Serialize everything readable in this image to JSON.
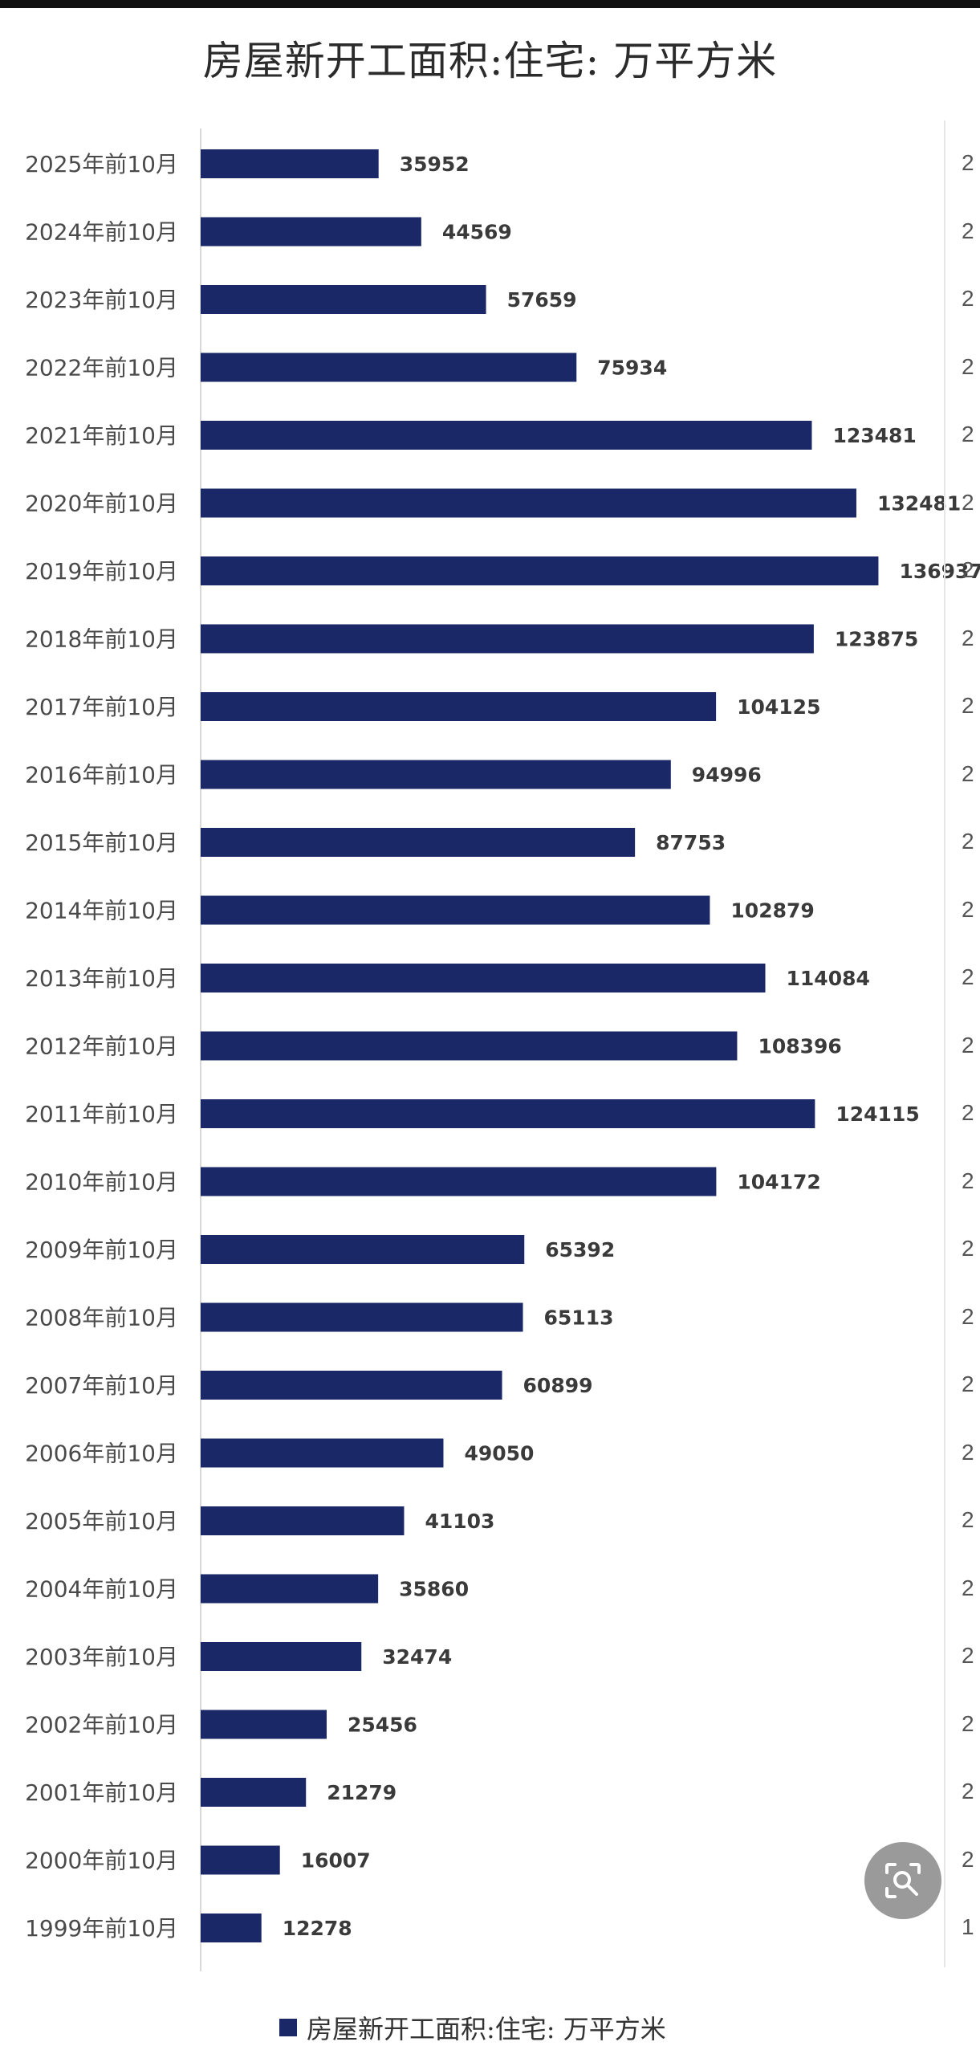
{
  "chart_data": {
    "type": "bar",
    "orientation": "horizontal",
    "title": "房屋新开工面积:住宅: 万平方米",
    "categories": [
      "2025年前10月",
      "2024年前10月",
      "2023年前10月",
      "2022年前10月",
      "2021年前10月",
      "2020年前10月",
      "2019年前10月",
      "2018年前10月",
      "2017年前10月",
      "2016年前10月",
      "2015年前10月",
      "2014年前10月",
      "2013年前10月",
      "2012年前10月",
      "2011年前10月",
      "2010年前10月",
      "2009年前10月",
      "2008年前10月",
      "2007年前10月",
      "2006年前10月",
      "2005年前10月",
      "2004年前10月",
      "2003年前10月",
      "2002年前10月",
      "2001年前10月",
      "2000年前10月",
      "1999年前10月"
    ],
    "series": [
      {
        "name": "房屋新开工面积:住宅: 万平方米",
        "values": [
          35952,
          44569,
          57659,
          75934,
          123481,
          132481,
          136937,
          123875,
          104125,
          94996,
          87753,
          102879,
          114084,
          108396,
          124115,
          104172,
          65392,
          65113,
          60899,
          49050,
          41103,
          35860,
          32474,
          25456,
          21279,
          16007,
          12278
        ],
        "color": "#1a2868"
      }
    ],
    "xlim": [
      0,
      150000
    ],
    "grid": false,
    "legend": "bottom-center",
    "data_labels": true
  },
  "legend": {
    "label": "房屋新开工面积:住宅: 万平方米"
  },
  "right_edge_ticks": [
    "2",
    "2",
    "2",
    "2",
    "2",
    "2",
    "2",
    "2",
    "2",
    "2",
    "2",
    "2",
    "2",
    "2",
    "2",
    "2",
    "2",
    "2",
    "2",
    "2",
    "2",
    "2",
    "2",
    "2",
    "2",
    "2",
    "1"
  ],
  "icons": {
    "search_fab": "image-search-icon"
  },
  "colors": {
    "bar": "#1a2868",
    "fab": "#9a9a9a"
  }
}
